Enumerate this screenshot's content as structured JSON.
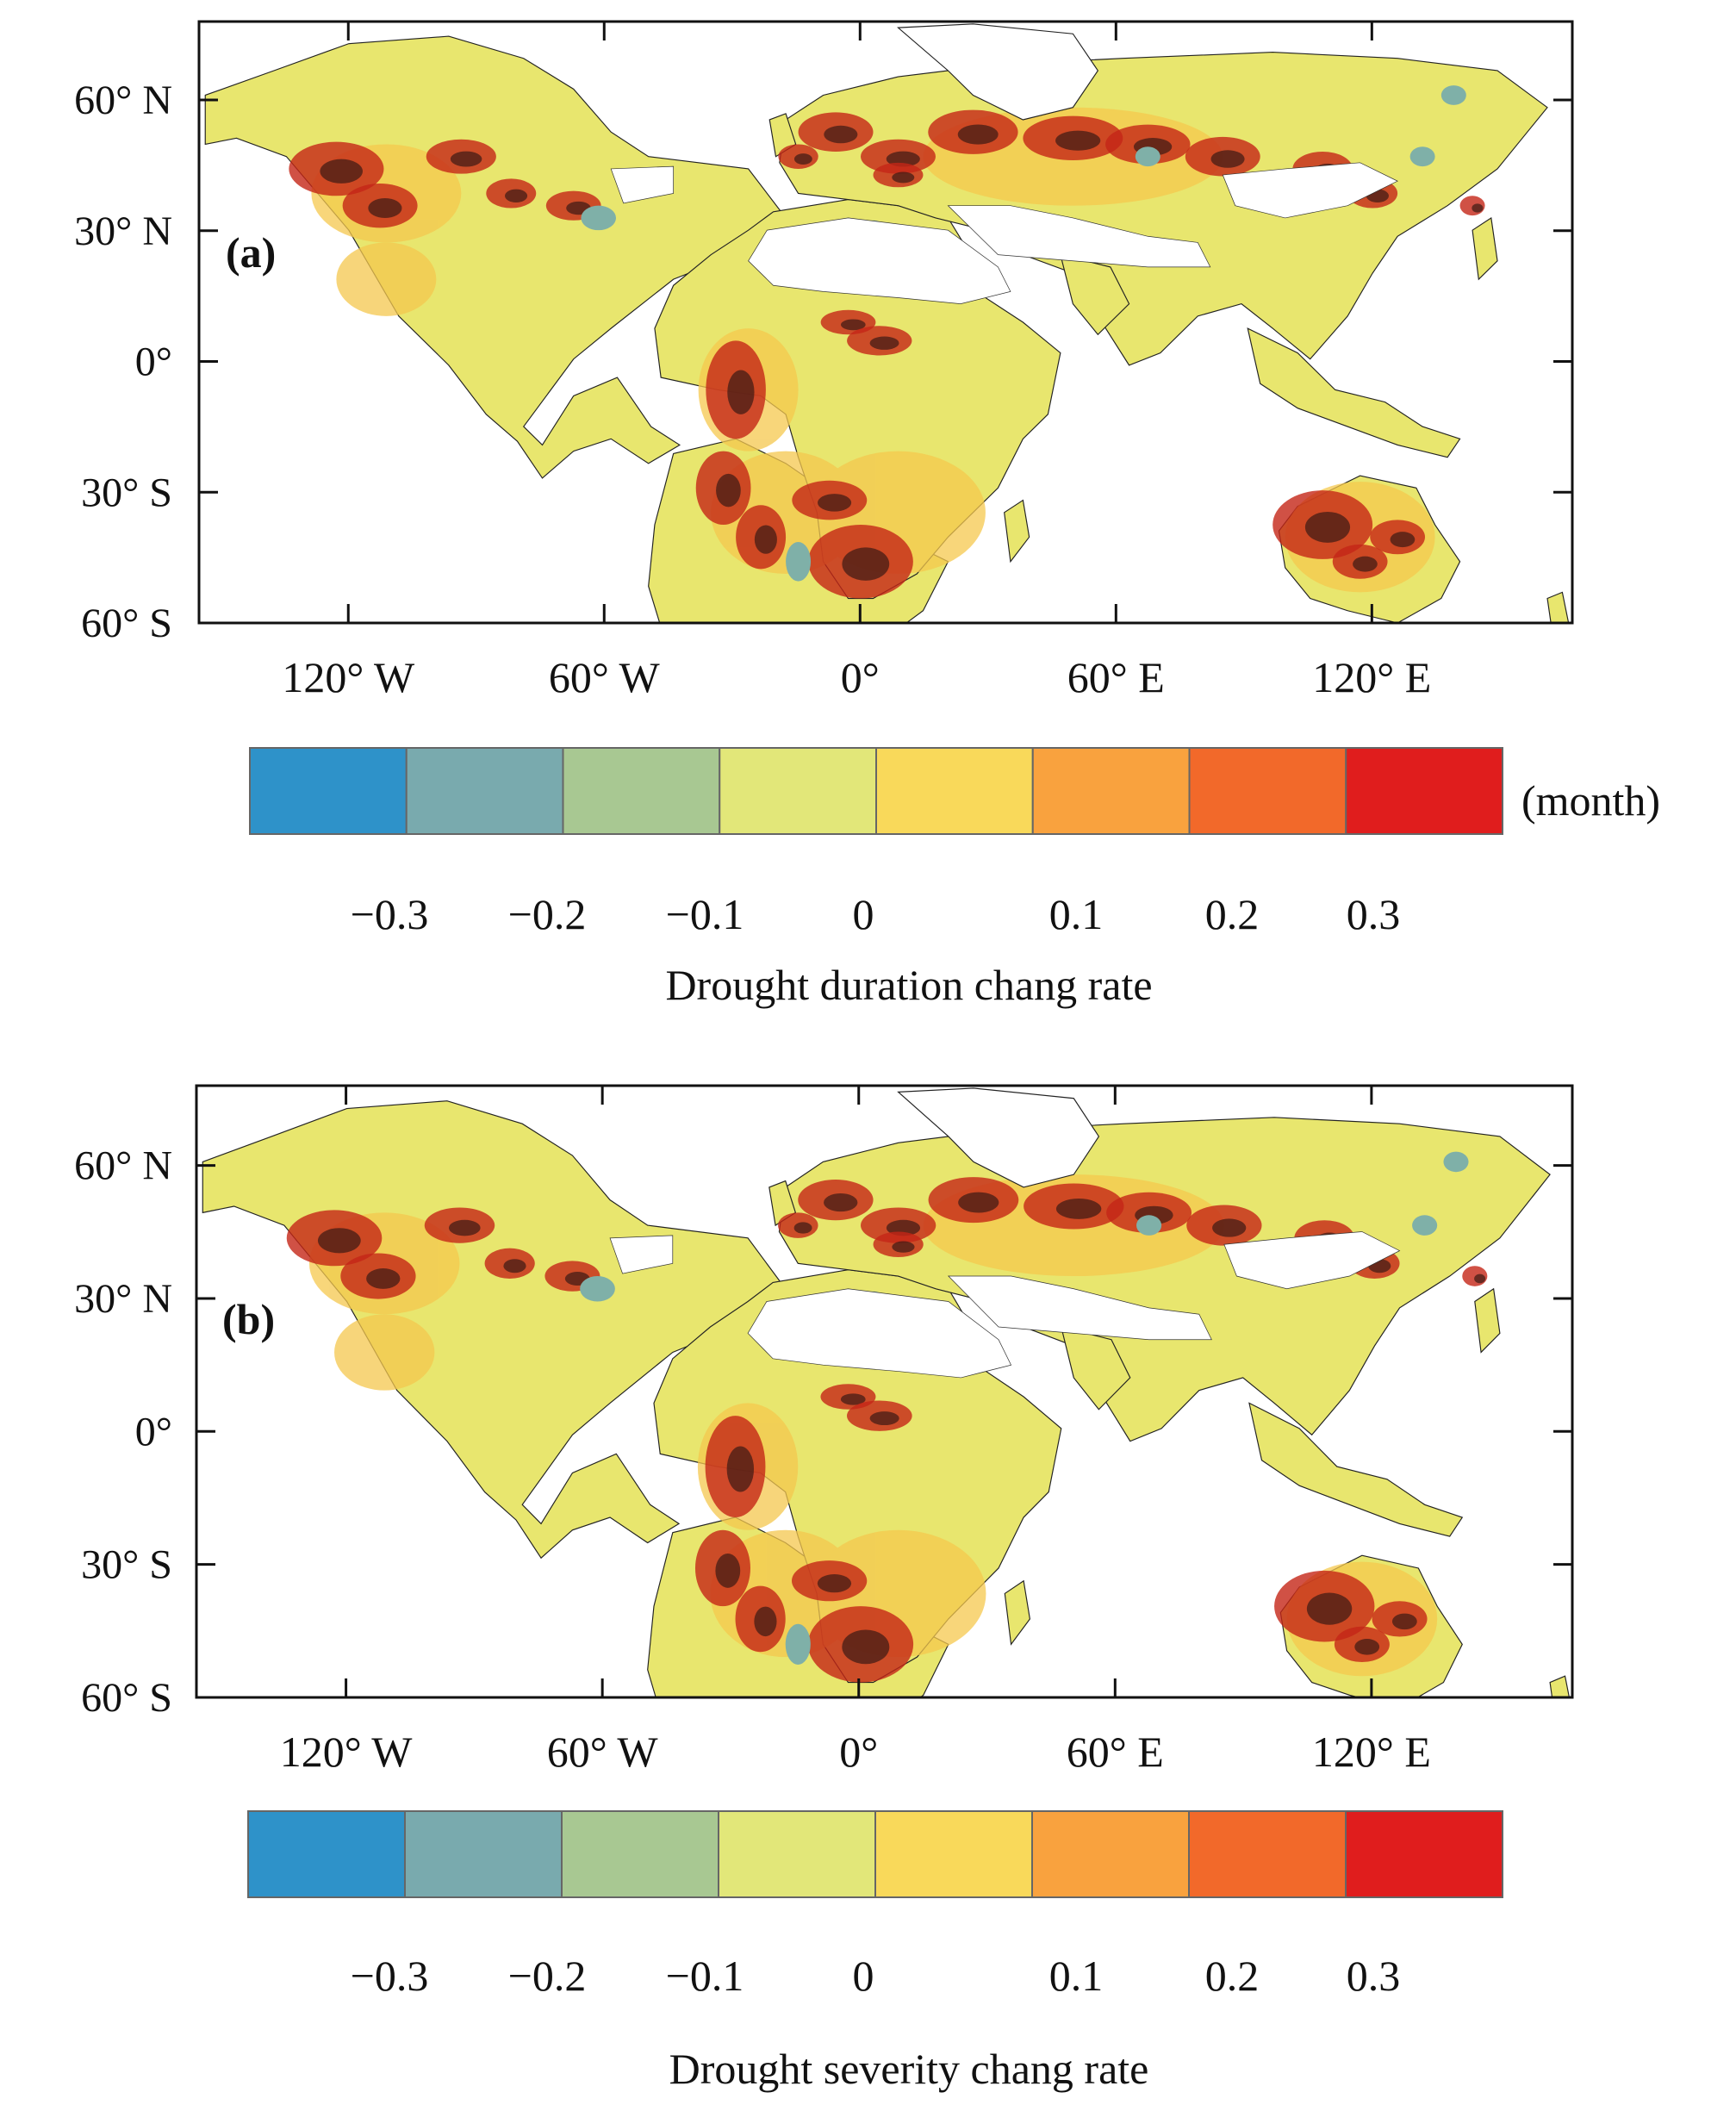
{
  "panels": [
    {
      "id": "a",
      "label": "(a)",
      "lat_labels": [
        "60° N",
        "30° N",
        "0°",
        "30° S",
        "60° S"
      ],
      "lat_values": [
        60,
        30,
        0,
        -30,
        -60
      ],
      "lon_labels": [
        "120° W",
        "60° W",
        "0°",
        "60° E",
        "120° E"
      ],
      "lon_values": [
        -120,
        -60,
        0,
        60,
        120
      ],
      "extent": {
        "lon_min": -155,
        "lon_max": 167,
        "lat_min": -60,
        "lat_max": 78
      },
      "colorbar": {
        "colors": [
          "#2e92c9",
          "#79aaae",
          "#a8c892",
          "#e2e779",
          "#f9d95a",
          "#f9a23e",
          "#f2692a",
          "#e01d1d"
        ],
        "tick_labels": [
          "−0.3",
          "−0.2",
          "−0.1",
          "0",
          "0.1",
          "0.2",
          "0.3"
        ],
        "unit": "(month)",
        "title": "Drought duration chang rate"
      }
    },
    {
      "id": "b",
      "label": "(b)",
      "lat_labels": [
        "60° N",
        "30° N",
        "0°",
        "30° S",
        "60° S"
      ],
      "lat_values": [
        60,
        30,
        0,
        -30,
        -60
      ],
      "lon_labels": [
        "120° W",
        "60° W",
        "0°",
        "60° E",
        "120° E"
      ],
      "lon_values": [
        -120,
        -60,
        0,
        60,
        120
      ],
      "extent": {
        "lon_min": -155,
        "lon_max": 167,
        "lat_min": -60,
        "lat_max": 78
      },
      "colorbar": {
        "colors": [
          "#2e92c9",
          "#79aaae",
          "#a8c892",
          "#e2e779",
          "#f9d95a",
          "#f9a23e",
          "#f2692a",
          "#e01d1d"
        ],
        "tick_labels": [
          "−0.3",
          "−0.2",
          "−0.1",
          "0",
          "0.1",
          "0.2",
          "0.3"
        ],
        "title": "Drought severity chang rate"
      }
    }
  ],
  "colors": {
    "land_base": "#e8e66e",
    "land_warm": "#f5c84e",
    "hot": "#c42616",
    "dark": "#3a1a14",
    "cool": "#7fb0a8"
  }
}
